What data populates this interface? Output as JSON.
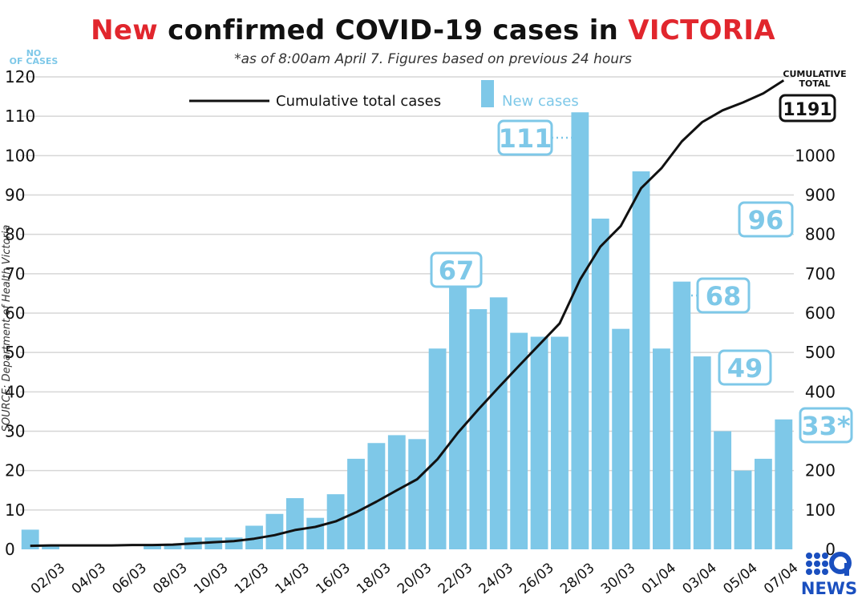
{
  "header": {
    "title_part1": "New",
    "title_part2": "confirmed COVID-19 cases in",
    "title_part3": "VICTORIA",
    "subtitle": "*as of 8:00am April 7. Figures based on previous 24 hours"
  },
  "left_axis_label_line1": "NO",
  "left_axis_label_line2": "OF CASES",
  "right_axis_label_line1": "CUMULATIVE",
  "right_axis_label_line2": "TOTAL",
  "cumulative_total_label": "1191",
  "source": "SOURCE: Department of Health Victoria",
  "logo": {
    "text": "NEWS",
    "color": "#1a4fbf"
  },
  "colors": {
    "bar": "#7ec8e8",
    "line": "#111111",
    "title_red": "#e1262d",
    "grid": "#d6d6d6"
  },
  "callouts": [
    {
      "text": "111"
    },
    {
      "text": "67"
    },
    {
      "text": "96"
    },
    {
      "text": "68"
    },
    {
      "text": "49"
    },
    {
      "text": "33*"
    }
  ],
  "chart_data": {
    "type": "bar",
    "title": "New confirmed COVID-19 cases in VICTORIA",
    "subtitle": "*as of 8:00am April 7. Figures based on previous 24 hours",
    "categories": [
      "01/03",
      "02/03",
      "03/03",
      "04/03",
      "05/03",
      "06/03",
      "07/03",
      "08/03",
      "09/03",
      "10/03",
      "11/03",
      "12/03",
      "13/03",
      "14/03",
      "15/03",
      "16/03",
      "17/03",
      "18/03",
      "19/03",
      "20/03",
      "21/03",
      "22/03",
      "23/03",
      "24/03",
      "25/03",
      "26/03",
      "27/03",
      "28/03",
      "29/03",
      "30/03",
      "31/03",
      "01/04",
      "02/04",
      "03/04",
      "04/04",
      "05/04",
      "06/04",
      "07/04"
    ],
    "x_tick_labels": [
      "02/03",
      "04/03",
      "06/03",
      "08/03",
      "10/03",
      "12/03",
      "14/03",
      "16/03",
      "18/03",
      "20/03",
      "22/03",
      "24/03",
      "26/03",
      "28/03",
      "30/03",
      "01/04",
      "03/04",
      "05/04",
      "07/04"
    ],
    "series": [
      {
        "name": "New cases",
        "axis": "left",
        "values": [
          5,
          1,
          0,
          0,
          0,
          0,
          1,
          1,
          3,
          3,
          3,
          6,
          9,
          13,
          8,
          14,
          23,
          27,
          29,
          28,
          51,
          67,
          61,
          64,
          55,
          54,
          54,
          111,
          84,
          56,
          96,
          51,
          68,
          49,
          30,
          20,
          23,
          33
        ]
      },
      {
        "name": "Cumulative total cases",
        "axis": "right",
        "type": "line",
        "values": [
          9,
          10,
          10,
          10,
          10,
          11,
          11,
          12,
          15,
          18,
          21,
          27,
          36,
          49,
          57,
          71,
          94,
          121,
          150,
          178,
          229,
          296,
          355,
          411,
          466,
          520,
          574,
          685,
          769,
          821,
          917,
          968,
          1036,
          1085,
          1115,
          1135,
          1158,
          1191
        ]
      }
    ],
    "ylabel": "NO OF CASES",
    "y2label": "CUMULATIVE TOTAL",
    "ylim": [
      0,
      120
    ],
    "y2lim": [
      0,
      1200
    ],
    "y_ticks": [
      0,
      10,
      20,
      30,
      40,
      50,
      60,
      70,
      80,
      90,
      100,
      110,
      120
    ],
    "y2_ticks": [
      0,
      100,
      200,
      300,
      400,
      500,
      600,
      700,
      800,
      900,
      1000
    ],
    "legend": [
      "Cumulative total cases",
      "New cases"
    ],
    "legend_position": "top-center",
    "grid": true
  }
}
